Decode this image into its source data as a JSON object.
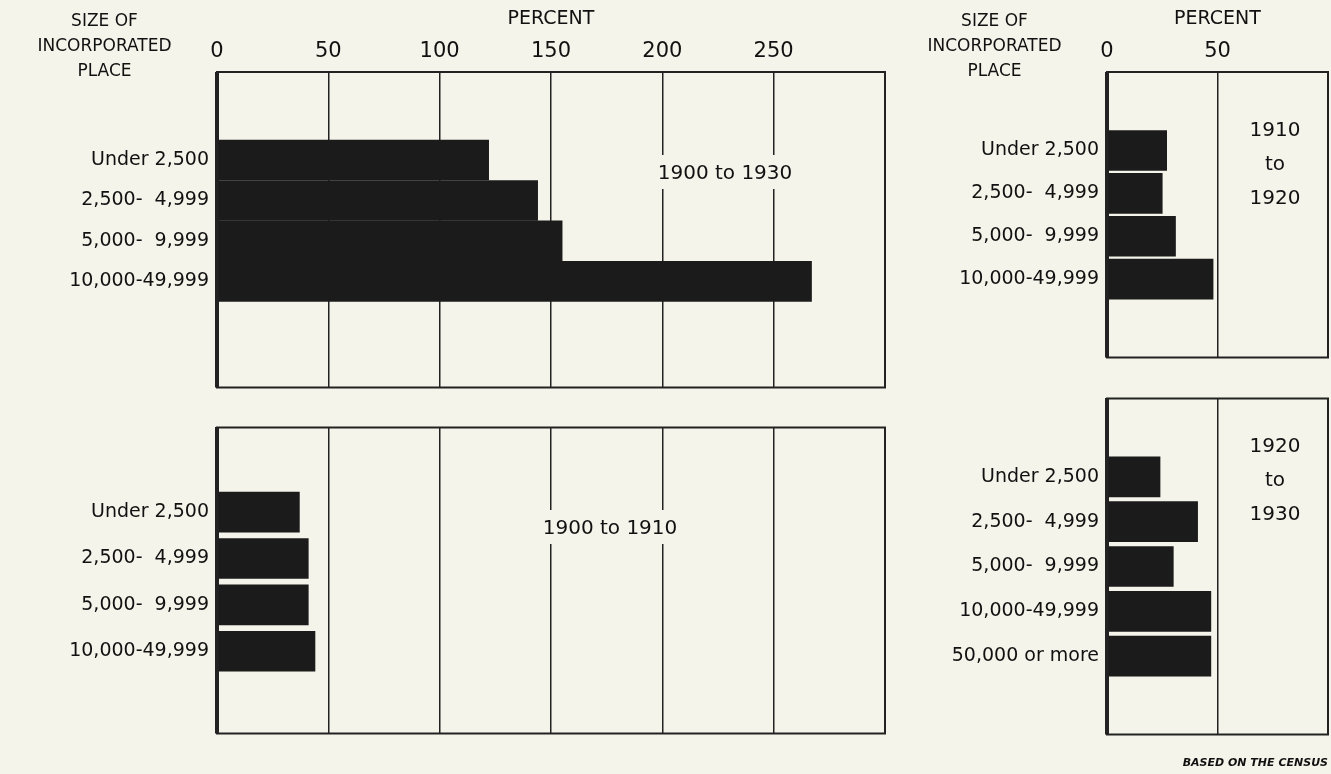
{
  "chart_data": [
    {
      "type": "bar",
      "orientation": "horizontal",
      "xlabel": "PERCENT",
      "ylabel": "SIZE OF INCORPORATED PLACE",
      "categories": [
        "Under 2,500",
        "2,500-  4,999",
        "5,000-  9,999",
        "10,000-49,999"
      ],
      "values": [
        122,
        144,
        155,
        267
      ],
      "color": "#1b1b1b",
      "xlim": [
        0,
        300
      ],
      "xticks": [
        0,
        50,
        100,
        150,
        200,
        250
      ],
      "grid": "x",
      "legend": false,
      "annotations": [
        "1900 to 1930"
      ]
    },
    {
      "type": "bar",
      "orientation": "horizontal",
      "categories": [
        "Under 2,500",
        "2,500-  4,999",
        "5,000-  9,999",
        "10,000-49,999"
      ],
      "values": [
        37,
        41,
        41,
        44
      ],
      "color": "#1b1b1b",
      "xlim": [
        0,
        300
      ],
      "xticks": [
        0,
        50,
        100,
        150,
        200,
        250
      ],
      "grid": "x",
      "legend": false,
      "tick_labels": "y",
      "annotations": [
        "1900 to 1910"
      ]
    },
    {
      "type": "bar",
      "orientation": "horizontal",
      "xlabel": "PERCENT",
      "ylabel": "SIZE OF INCORPORATED PLACE",
      "categories": [
        "Under 2,500",
        "2,500-  4,999",
        "5,000-  9,999",
        "10,000-49,999"
      ],
      "values": [
        27,
        25,
        31,
        48
      ],
      "color": "#1b1b1b",
      "xlim": [
        0,
        100
      ],
      "xticks": [
        0,
        50
      ],
      "grid": "x",
      "legend": false,
      "annotations": [
        "1910 to 1920"
      ]
    },
    {
      "type": "bar",
      "orientation": "horizontal",
      "categories": [
        "Under 2,500",
        "2,500-  4,999",
        "5,000-  9,999",
        "10,000-49,999",
        "50,000 or more"
      ],
      "values": [
        24,
        41,
        30,
        47,
        47
      ],
      "color": "#1b1b1b",
      "xlim": [
        0,
        100
      ],
      "xticks": [
        0,
        50
      ],
      "grid": "x",
      "legend": false,
      "tick_labels": "y",
      "annotations": [
        "1920 to 1930",
        "BASED ON THE CENSUS"
      ]
    }
  ]
}
